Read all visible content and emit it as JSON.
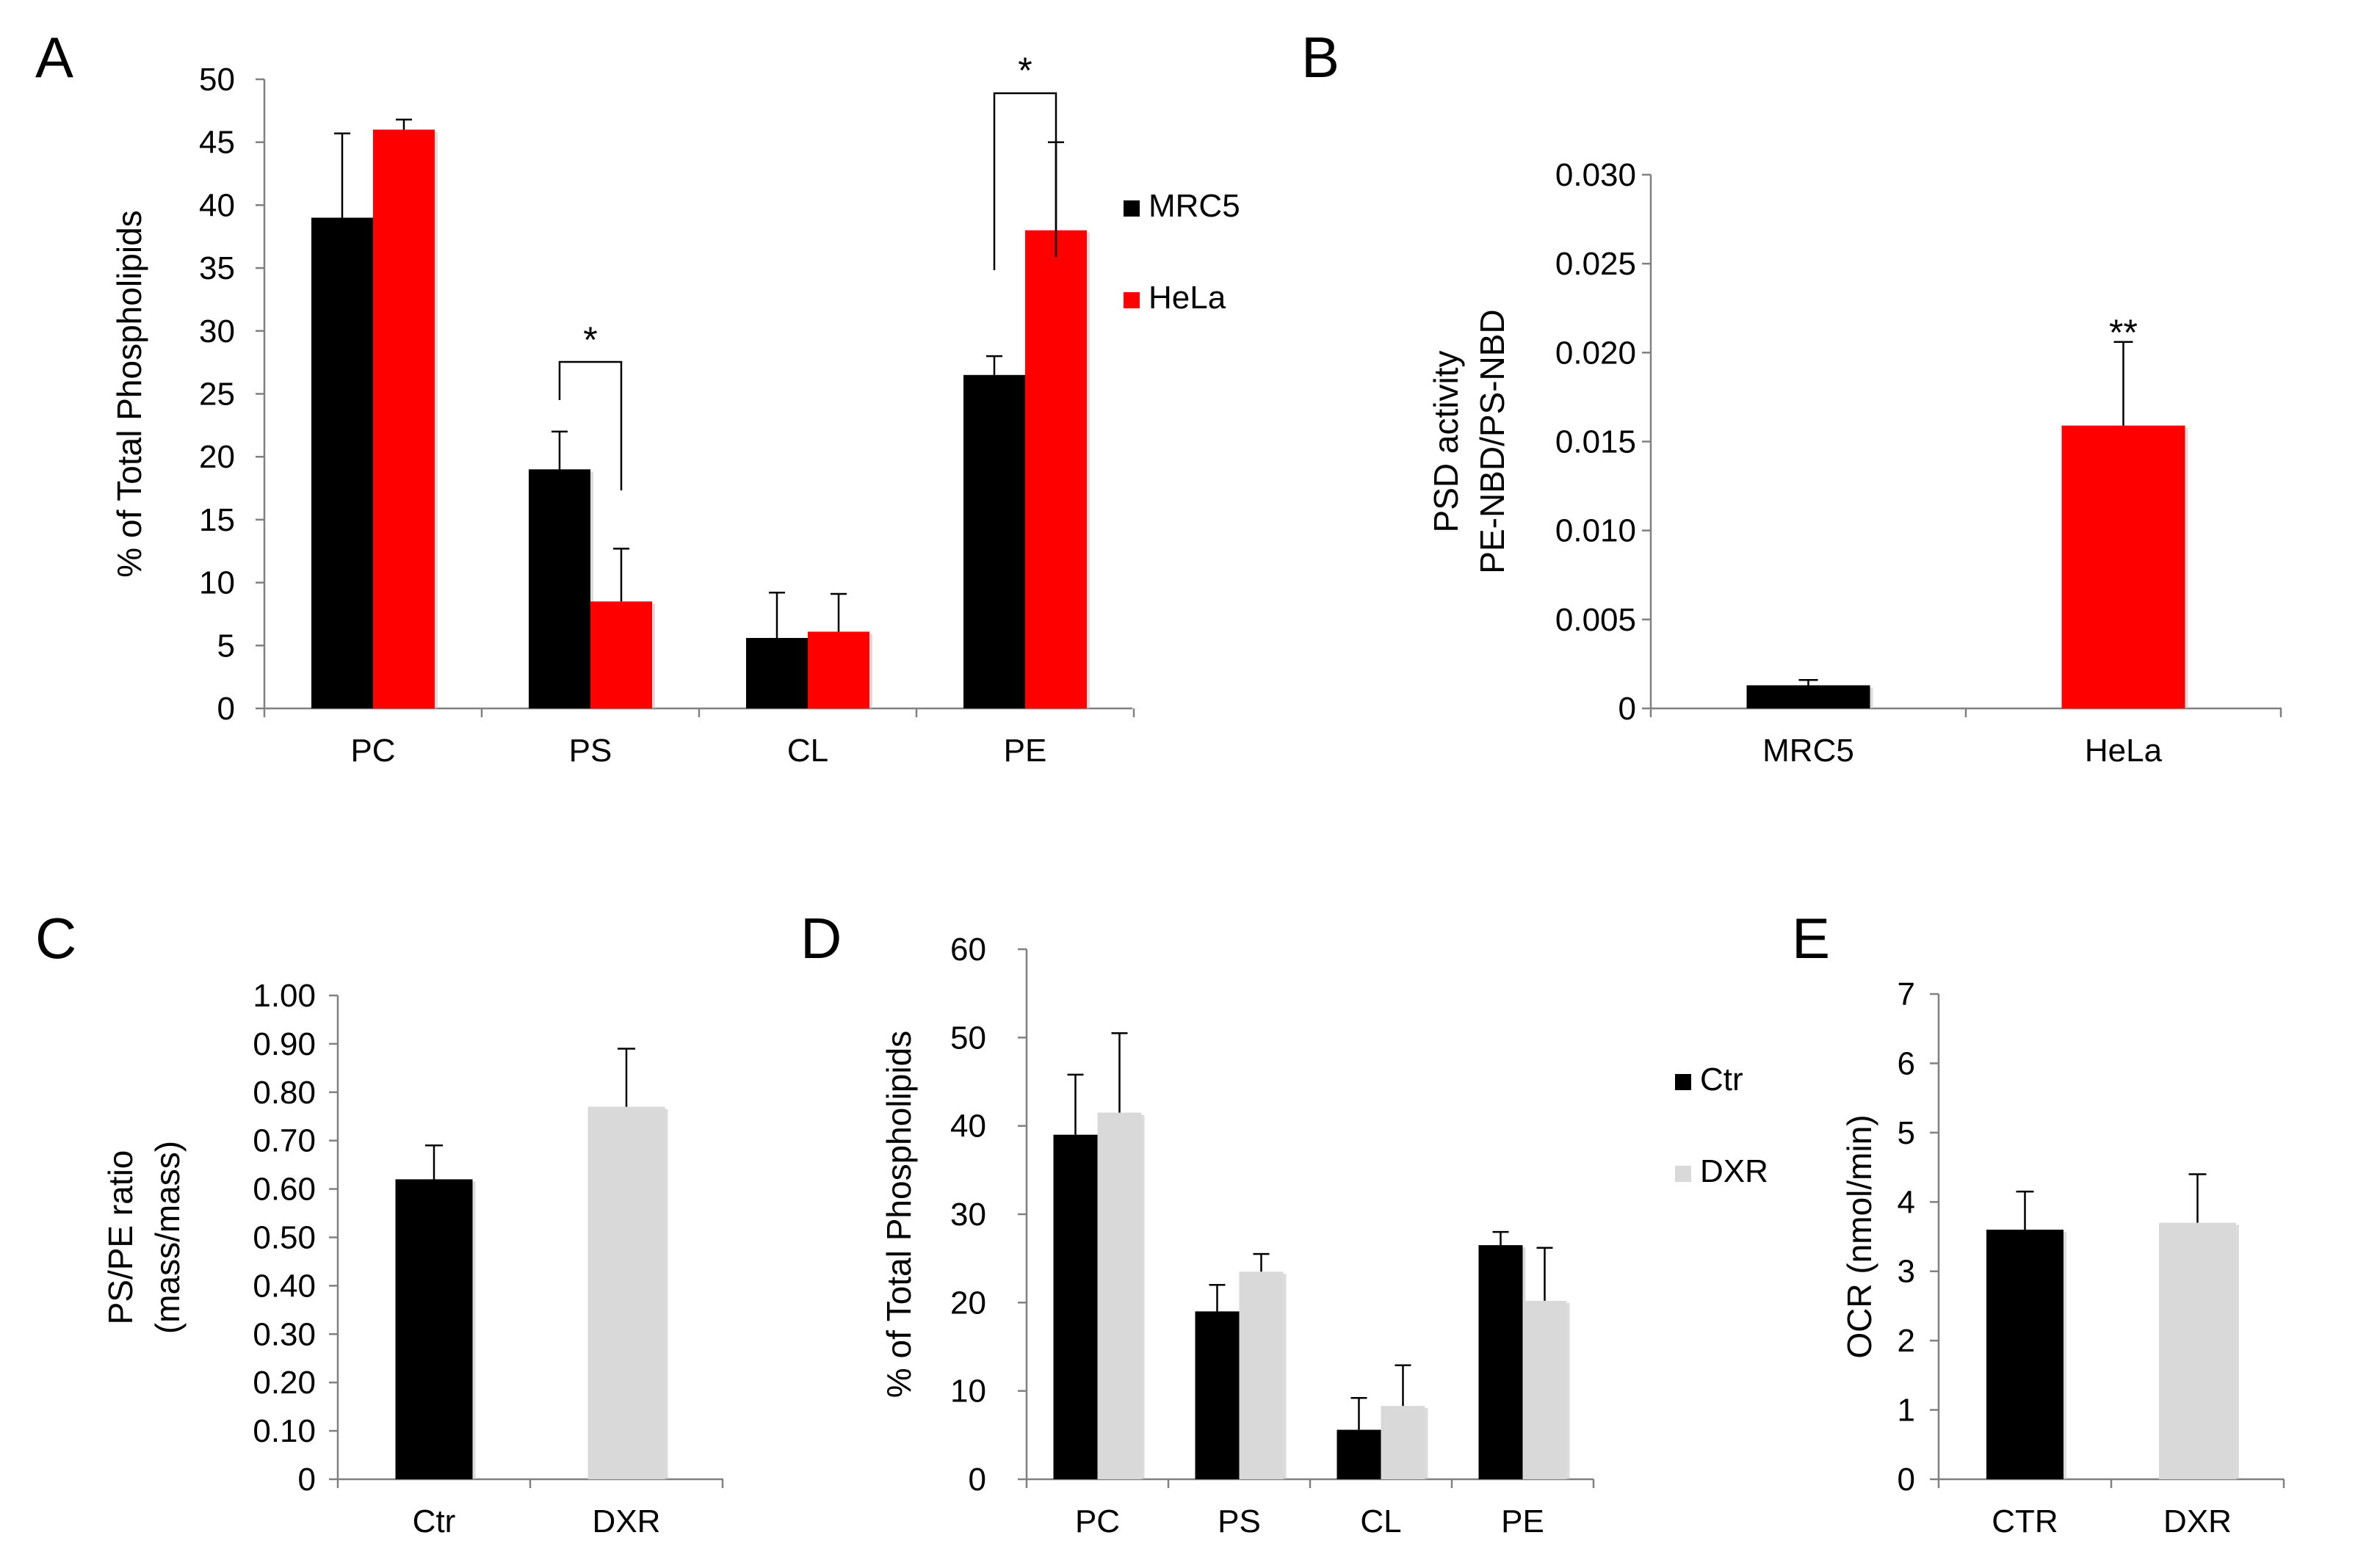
{
  "chart_data": [
    {
      "panel": "A",
      "type": "bar",
      "ylabel": "% of Total Phospholipids",
      "ylim": [
        0,
        50
      ],
      "yticks": [
        0,
        5,
        10,
        15,
        20,
        25,
        30,
        35,
        40,
        45,
        50
      ],
      "categories": [
        "PC",
        "PS",
        "CL",
        "PE"
      ],
      "legend_position": "right",
      "series": [
        {
          "name": "MRC5",
          "color": "#000000",
          "values": [
            39,
            19,
            5.6,
            26.5
          ],
          "errors": [
            6.7,
            3,
            3.6,
            1.5
          ]
        },
        {
          "name": "HeLa",
          "color": "#ff0000",
          "values": [
            46,
            8.5,
            6.1,
            38
          ],
          "errors": [
            0.8,
            4.2,
            3,
            7
          ]
        }
      ],
      "annotations": [
        {
          "text": "*",
          "category": "PS"
        },
        {
          "text": "*",
          "category": "PE"
        }
      ]
    },
    {
      "panel": "B",
      "type": "bar",
      "ylabel": [
        "PSD activity",
        "PE-NBD/PS-NBD"
      ],
      "ylim": [
        0,
        0.03
      ],
      "yticks": [
        "0",
        "0.005",
        "0.010",
        "0.015",
        "0.020",
        "0.025",
        "0.030"
      ],
      "categories": [
        "MRC5",
        "HeLa"
      ],
      "series": [
        {
          "name": "PSD activity",
          "colors": [
            "#000000",
            "#ff0000"
          ],
          "values": [
            0.0013,
            0.0159
          ],
          "errors": [
            0.0003,
            0.0047
          ]
        }
      ],
      "annotations": [
        {
          "text": "**",
          "category": "HeLa"
        }
      ]
    },
    {
      "panel": "C",
      "type": "bar",
      "ylabel": [
        "PS/PE ratio",
        "(mass/mass)"
      ],
      "ylim": [
        0,
        1.0
      ],
      "yticks": [
        "0",
        "0.10",
        "0.20",
        "0.30",
        "0.40",
        "0.50",
        "0.60",
        "0.70",
        "0.80",
        "0.90",
        "1.00"
      ],
      "categories": [
        "Ctr",
        "DXR"
      ],
      "series": [
        {
          "name": "PS/PE ratio",
          "colors": [
            "#000000",
            "#d9d9d9"
          ],
          "values": [
            0.62,
            0.77
          ],
          "errors": [
            0.07,
            0.12
          ]
        }
      ]
    },
    {
      "panel": "D",
      "type": "bar",
      "ylabel": "% of Total Phospholipids",
      "ylim": [
        0,
        60
      ],
      "yticks": [
        0,
        10,
        20,
        30,
        40,
        50,
        60
      ],
      "categories": [
        "PC",
        "PS",
        "CL",
        "PE"
      ],
      "legend_position": "right",
      "series": [
        {
          "name": "Ctr",
          "color": "#000000",
          "values": [
            39,
            19,
            5.6,
            26.5
          ],
          "errors": [
            6.8,
            3,
            3.6,
            1.5
          ]
        },
        {
          "name": "DXR",
          "color": "#d9d9d9",
          "values": [
            41.5,
            23.5,
            8.3,
            20.2
          ],
          "errors": [
            9,
            2,
            4.6,
            6
          ]
        }
      ]
    },
    {
      "panel": "E",
      "type": "bar",
      "ylabel": "OCR (nmol/min)",
      "ylim": [
        0,
        7
      ],
      "yticks": [
        0,
        1,
        2,
        3,
        4,
        5,
        6,
        7
      ],
      "categories": [
        "CTR",
        "DXR"
      ],
      "series": [
        {
          "name": "OCR",
          "colors": [
            "#000000",
            "#d9d9d9"
          ],
          "values": [
            3.6,
            3.7
          ],
          "errors": [
            0.55,
            0.7
          ]
        }
      ]
    }
  ]
}
